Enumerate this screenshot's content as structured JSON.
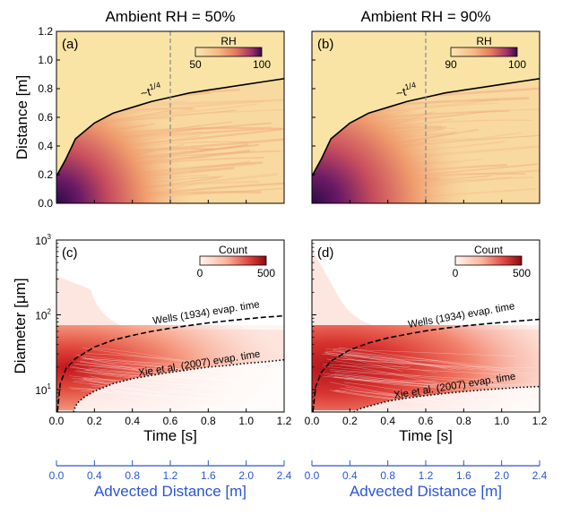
{
  "colors": {
    "rh_background": "#f9e4a6",
    "rh_low": "#fbe7b0",
    "rh_mid": "#ef8a5c",
    "rh_high": "#8a2a6e",
    "rh_max": "#3a0a4a",
    "count_low": "#fde9e4",
    "count_high": "#a50f15",
    "advected_axis": "#2a55d6",
    "ref_line": "#000000",
    "dashed_vertical": "#888888"
  },
  "chart_data": [
    {
      "id": "a",
      "type": "heatmap",
      "title": "Ambient RH = 50%",
      "panel_label": "(a)",
      "ylabel": "Distance [m]",
      "xlim": [
        0.0,
        1.2
      ],
      "ylim": [
        0.0,
        1.2
      ],
      "yticks": [
        "0.0",
        "0.2",
        "0.4",
        "0.6",
        "0.8",
        "1.0",
        "1.2"
      ],
      "colorbar": {
        "label": "RH",
        "min_label": "50",
        "max_label": "100"
      },
      "annotation": "~t",
      "annotation_exp": "1/4",
      "front_curve": {
        "x": [
          0.0,
          0.05,
          0.1,
          0.2,
          0.3,
          0.4,
          0.5,
          0.6,
          0.7,
          0.8,
          0.9,
          1.0,
          1.1,
          1.2
        ],
        "y": [
          0.19,
          0.31,
          0.45,
          0.56,
          0.63,
          0.67,
          0.71,
          0.74,
          0.77,
          0.79,
          0.81,
          0.83,
          0.85,
          0.87
        ]
      },
      "vertical_line_x": 0.6
    },
    {
      "id": "b",
      "type": "heatmap",
      "title": "Ambient RH = 90%",
      "panel_label": "(b)",
      "xlim": [
        0.0,
        1.2
      ],
      "ylim": [
        0.0,
        1.2
      ],
      "colorbar": {
        "label": "RH",
        "min_label": "90",
        "max_label": "100"
      },
      "annotation": "~t",
      "annotation_exp": "1/4",
      "front_curve": {
        "x": [
          0.0,
          0.05,
          0.1,
          0.2,
          0.3,
          0.4,
          0.5,
          0.6,
          0.7,
          0.8,
          0.9,
          1.0,
          1.1,
          1.2
        ],
        "y": [
          0.19,
          0.31,
          0.45,
          0.56,
          0.63,
          0.67,
          0.71,
          0.74,
          0.77,
          0.79,
          0.81,
          0.83,
          0.85,
          0.87
        ]
      },
      "vertical_line_x": 0.6
    },
    {
      "id": "c",
      "type": "heatmap",
      "panel_label": "(c)",
      "ylabel": "Diameter [μm]",
      "xlabel": "Time [s]",
      "xlim": [
        0.0,
        1.2
      ],
      "ylim_log10": [
        0.7,
        3.0
      ],
      "xticks": [
        "0.0",
        "0.2",
        "0.4",
        "0.6",
        "0.8",
        "1.0",
        "1.2"
      ],
      "yticks": [
        {
          "base": "10",
          "exp": "1"
        },
        {
          "base": "10",
          "exp": "2"
        },
        {
          "base": "10",
          "exp": "3"
        }
      ],
      "colorbar": {
        "label": "Count",
        "min_label": "0",
        "max_label": "500"
      },
      "wells_label": "Wells (1934) evap. time",
      "xie_label": "Xie et al. (2007) evap. time",
      "wells_curve": {
        "x": [
          0.005,
          0.02,
          0.05,
          0.1,
          0.2,
          0.3,
          0.4,
          0.5,
          0.6,
          0.7,
          0.8,
          0.9,
          1.0,
          1.1,
          1.2
        ],
        "y": [
          5,
          12,
          19,
          26,
          37,
          46,
          53,
          60,
          66,
          72,
          78,
          83,
          88,
          93,
          97
        ]
      },
      "xie_curve": {
        "x": [
          0.09,
          0.1,
          0.12,
          0.15,
          0.2,
          0.3,
          0.4,
          0.5,
          0.6,
          0.7,
          0.8,
          0.9,
          1.0,
          1.1,
          1.2
        ],
        "y": [
          5,
          6,
          7,
          8,
          9.5,
          12,
          14,
          15.5,
          17,
          18.5,
          20,
          21,
          22.5,
          23.5,
          25
        ]
      },
      "advected_axis": {
        "xlabel": "Advected Distance [m]",
        "xticks": [
          "0.0",
          "0.4",
          "0.8",
          "1.2",
          "1.6",
          "2.0",
          "2.4"
        ]
      }
    },
    {
      "id": "d",
      "type": "heatmap",
      "panel_label": "(d)",
      "xlabel": "Time [s]",
      "xlim": [
        0.0,
        1.2
      ],
      "ylim_log10": [
        0.7,
        3.0
      ],
      "xticks": [
        "0.0",
        "0.2",
        "0.4",
        "0.6",
        "0.8",
        "1.0",
        "1.2"
      ],
      "colorbar": {
        "label": "Count",
        "min_label": "0",
        "max_label": "500"
      },
      "wells_label": "Wells (1934) evap. time",
      "xie_label": "Xie et al. (2007) evap. time",
      "wells_curve": {
        "x": [
          0.005,
          0.02,
          0.05,
          0.1,
          0.2,
          0.3,
          0.4,
          0.5,
          0.6,
          0.7,
          0.8,
          0.9,
          1.0,
          1.1,
          1.2
        ],
        "y": [
          5,
          11,
          17,
          24,
          34,
          42,
          49,
          55,
          61,
          66,
          71,
          75,
          79,
          83,
          87
        ]
      },
      "xie_curve": {
        "x": [
          0.22,
          0.25,
          0.3,
          0.4,
          0.5,
          0.6,
          0.7,
          0.8,
          0.9,
          1.0,
          1.1,
          1.2
        ],
        "y": [
          5,
          5.5,
          6,
          7,
          7.7,
          8.3,
          8.9,
          9.4,
          9.9,
          10.3,
          10.7,
          11
        ]
      },
      "advected_axis": {
        "xlabel": "Advected Distance [m]",
        "xticks": [
          "0.0",
          "0.4",
          "0.8",
          "1.2",
          "1.6",
          "2.0",
          "2.4"
        ]
      }
    }
  ]
}
